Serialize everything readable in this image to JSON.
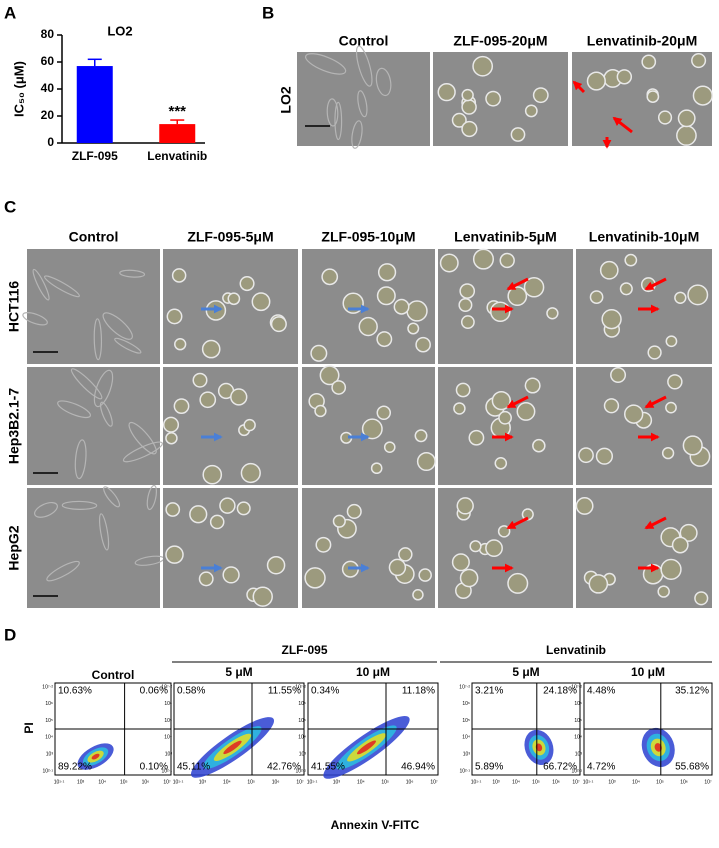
{
  "panel_labels": [
    "A",
    "B",
    "C",
    "D"
  ],
  "chart_data": {
    "type": "bar",
    "title": "LO2",
    "y_label": "IC₅₀ (μM)",
    "categories": [
      "ZLF-095",
      "Lenvatinib"
    ],
    "values": [
      57,
      14
    ],
    "errors": [
      5,
      3
    ],
    "colors": [
      "#0000ff",
      "#ff0000"
    ],
    "annotations": [
      null,
      "***"
    ],
    "ylim": [
      0,
      80
    ],
    "yticks": [
      0,
      20,
      40,
      60,
      80
    ]
  },
  "panel_b": {
    "columns": [
      "Control",
      "ZLF-095-20μM",
      "Lenvatinib-20μM"
    ],
    "rows": [
      "LO2"
    ]
  },
  "panel_c": {
    "columns": [
      "Control",
      "ZLF-095-5μM",
      "ZLF-095-10μM",
      "Lenvatinib-5μM",
      "Lenvatinib-10μM"
    ],
    "rows": [
      "HCT116",
      "Hep3B2.1-7",
      "HepG2"
    ]
  },
  "panel_d": {
    "groups": [
      "ZLF-095",
      "Lenvatinib"
    ],
    "y_label": "PI",
    "x_label": "Annexin V-FITC",
    "x_ticks": [
      "10¹·¹",
      "10³",
      "10⁴",
      "10⁵",
      "10⁶",
      "10⁷"
    ],
    "y_ticks": [
      "10⁷·²",
      "10⁶",
      "10⁵",
      "10⁴",
      "10³",
      "10²·¹"
    ],
    "plots": [
      {
        "title": "Control",
        "quadrants": [
          "10.63%",
          "0.06%",
          "89.22%",
          "0.10%"
        ]
      },
      {
        "title": "5 μM",
        "quadrants": [
          "0.58%",
          "11.55%",
          "45.11%",
          "42.76%"
        ]
      },
      {
        "title": "10 μM",
        "quadrants": [
          "0.34%",
          "11.18%",
          "41.55%",
          "46.94%"
        ]
      },
      {
        "title": "5 μM",
        "quadrants": [
          "3.21%",
          "24.18%",
          "5.89%",
          "66.72%"
        ]
      },
      {
        "title": "10 μM",
        "quadrants": [
          "4.48%",
          "35.12%",
          "4.72%",
          "55.68%"
        ]
      }
    ]
  }
}
